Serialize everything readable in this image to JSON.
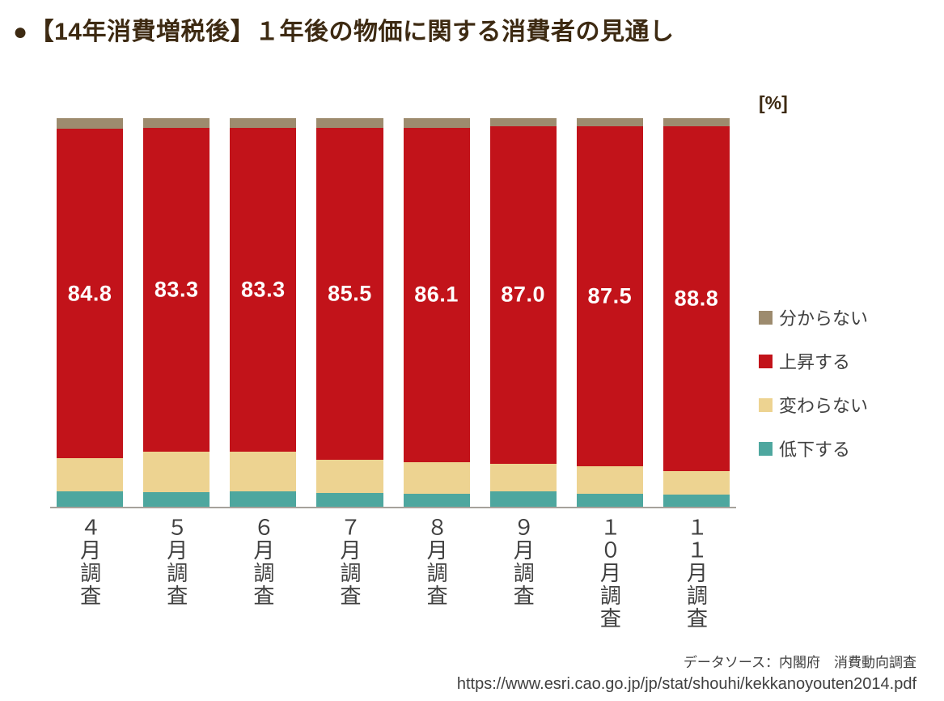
{
  "title_bullet": "●",
  "legend": [
    {
      "label": "分からない",
      "color": "#9d8b6e"
    },
    {
      "label": "上昇する",
      "color": "#c2131a"
    },
    {
      "label": "変わらない",
      "color": "#edd391"
    },
    {
      "label": "低下する",
      "color": "#4ea79f"
    }
  ],
  "footer": {
    "source": "データソース：内閣府　消費動向調査",
    "url": "https://www.esri.cao.go.jp/jp/stat/shouhi/kekkanoyouten2014.pdf"
  },
  "chart_data": {
    "type": "bar",
    "stacked": true,
    "stack_total": 100,
    "unit": "[%]",
    "title": "【14年消費増税後】１年後の物価に関する消費者の見通し",
    "categories": [
      "４月調査",
      "５月調査",
      "６月調査",
      "７月調査",
      "８月調査",
      "９月調査",
      "１０月調査",
      "１１月調査"
    ],
    "stack_order": "bottom-to-top",
    "series": [
      {
        "name": "低下する",
        "color": "#4ea79f",
        "values": [
          4.0,
          3.8,
          4.0,
          3.5,
          3.3,
          4.0,
          3.3,
          3.2
        ],
        "estimated": true
      },
      {
        "name": "変わらない",
        "color": "#edd391",
        "values": [
          8.5,
          10.4,
          10.2,
          8.5,
          8.2,
          7.0,
          7.2,
          6.0
        ],
        "estimated": true
      },
      {
        "name": "上昇する",
        "color": "#c2131a",
        "values": [
          84.8,
          83.3,
          83.3,
          85.5,
          86.1,
          87.0,
          87.5,
          88.8
        ],
        "labeled": true
      },
      {
        "name": "分からない",
        "color": "#9d8b6e",
        "values": [
          2.7,
          2.5,
          2.5,
          2.5,
          2.4,
          2.0,
          2.0,
          2.0
        ],
        "estimated": true
      }
    ],
    "bar_labels": [
      "84.8",
      "83.3",
      "83.3",
      "85.5",
      "86.1",
      "87.0",
      "87.5",
      "88.8"
    ],
    "ylim": [
      0,
      100
    ],
    "legend_position": "right",
    "grid": false
  }
}
